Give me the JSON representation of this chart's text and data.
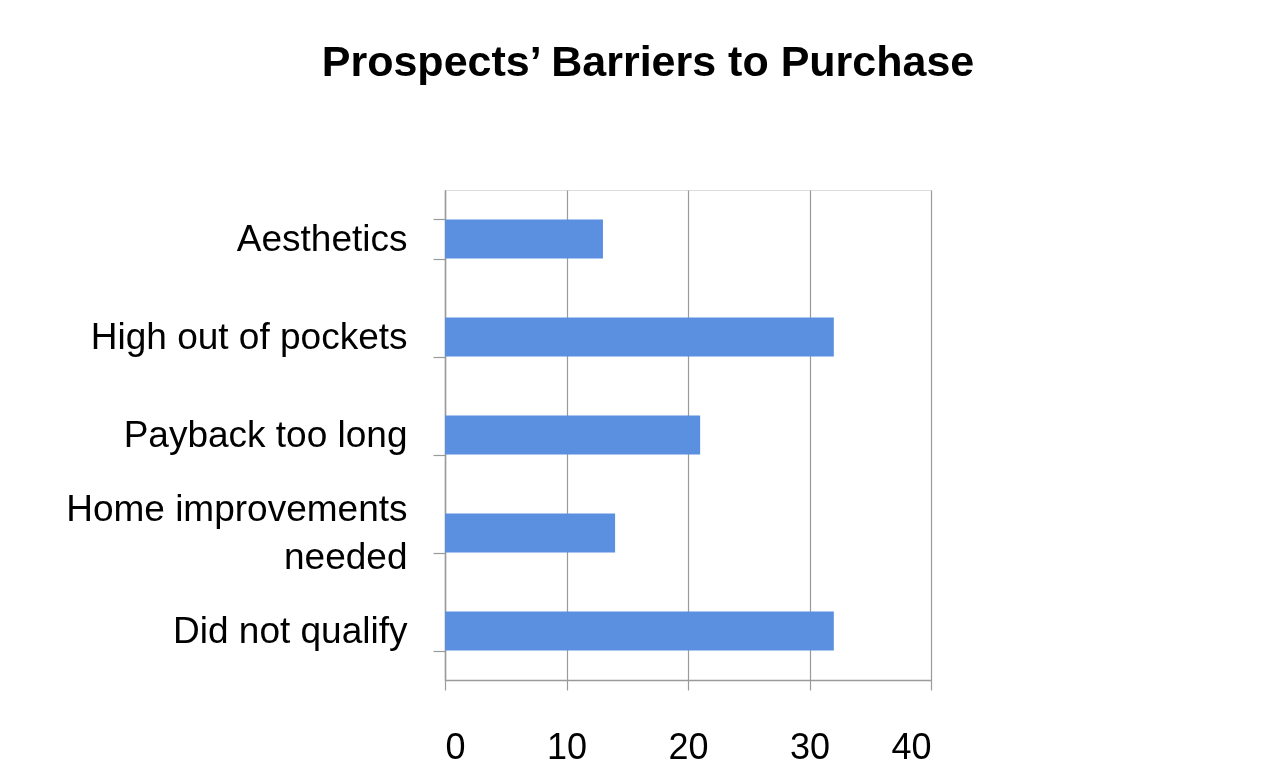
{
  "chart_data": {
    "type": "bar",
    "orientation": "horizontal",
    "title": "Prospects’ Barriers to Purchase",
    "categories": [
      "Aesthetics",
      "High out of pockets",
      "Payback too long",
      "Home improvements needed",
      "Did not qualify"
    ],
    "values": [
      13,
      32,
      21,
      14,
      32
    ],
    "color": "#5b8fe0",
    "xlim": [
      0,
      40
    ],
    "xticks": [
      0,
      10,
      20,
      30,
      40
    ],
    "grid": "x"
  }
}
